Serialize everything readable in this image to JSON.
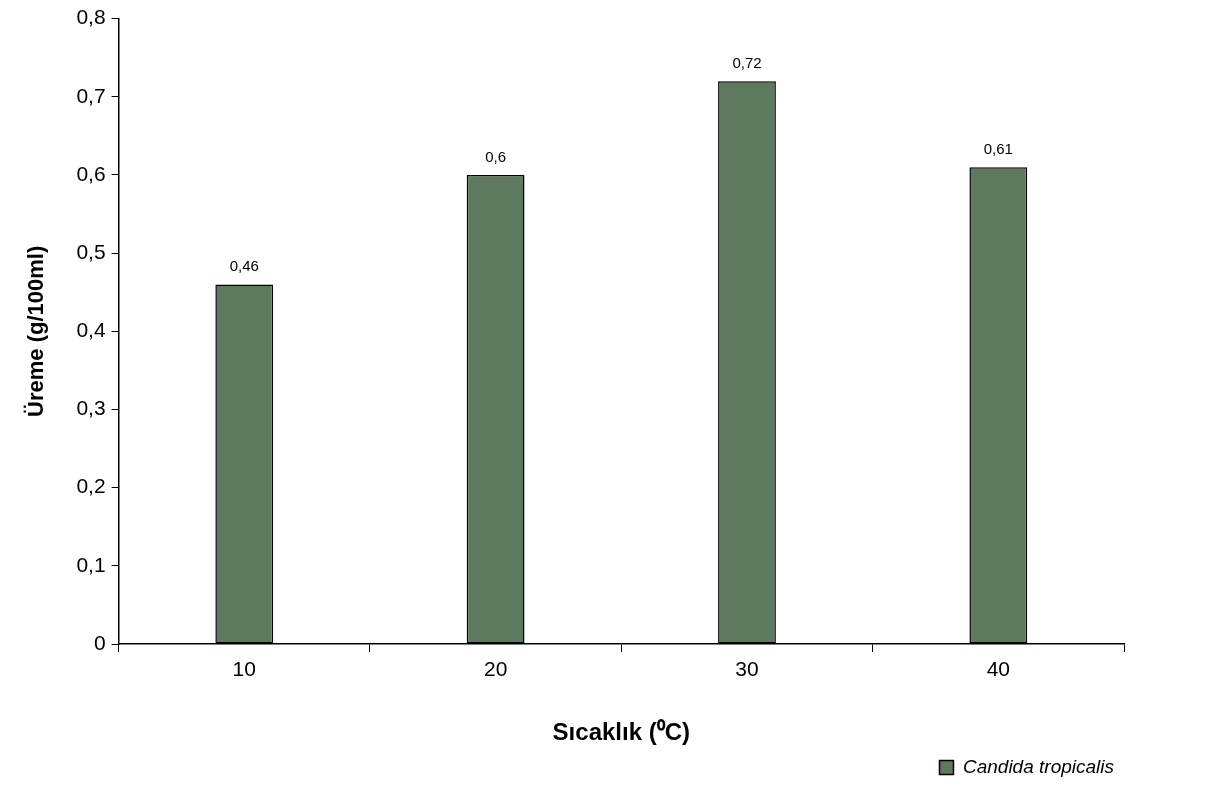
{
  "chart_data": {
    "type": "bar",
    "xlabel": "Sıcaklık (⁰C)",
    "ylabel": "Üreme (g/100ml)",
    "categories": [
      "10",
      "20",
      "30",
      "40"
    ],
    "series": [
      {
        "name": "Candida tropicalis",
        "color": "#5e7a5e",
        "values": [
          0.46,
          0.6,
          0.72,
          0.61
        ],
        "value_labels": [
          "0,46",
          "0,6",
          "0,72",
          "0,61"
        ]
      }
    ],
    "ylim": [
      0,
      0.8
    ],
    "yticks": [
      0,
      {
        "value": 0.1,
        "label": "0,1"
      },
      {
        "value": 0.2,
        "label": "0,2"
      },
      {
        "value": 0.3,
        "label": "0,3"
      },
      {
        "value": 0.4,
        "label": "0,4"
      },
      {
        "value": 0.5,
        "label": "0,5"
      },
      {
        "value": 0.6,
        "label": "0,6"
      },
      {
        "value": 0.7,
        "label": "0,7"
      },
      {
        "value": 0.8,
        "label": "0,8"
      }
    ],
    "grid": false,
    "legend": "bottom right"
  }
}
